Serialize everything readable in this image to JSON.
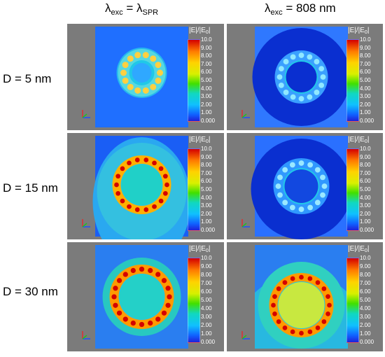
{
  "columns": [
    {
      "symbol": "λ",
      "sub": "exc",
      "eq": " = ",
      "symbol2": "λ",
      "sub2": "SPR"
    },
    {
      "symbol": "λ",
      "sub": "exc",
      "text": " = 808 nm"
    }
  ],
  "rows": [
    {
      "label": "D = 5 nm"
    },
    {
      "label": "D = 15 nm"
    },
    {
      "label": "D = 30 nm"
    }
  ],
  "colorbar": {
    "title_main": "|E|/|E",
    "title_sub": "0",
    "title_end": "|",
    "ticks": [
      "10.0",
      "9.00",
      "8.00",
      "7.00",
      "6.00",
      "5.00",
      "4.00",
      "3.00",
      "2.00",
      "1.00",
      "0.000"
    ]
  },
  "colors": {
    "panel_bg": "#7b7b7b",
    "field_low": "#1f6fff",
    "field_dark": "#0a2fd0",
    "field_mid": "#20c8e8",
    "field_hot": "#ff9d00",
    "field_max": "#d40000"
  }
}
